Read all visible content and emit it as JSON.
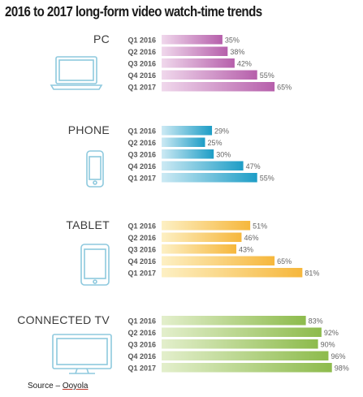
{
  "chart_data": {
    "type": "bar",
    "title": "2016 to 2017 long-form video watch-time trends",
    "categories": [
      "Q1 2016",
      "Q2 2016",
      "Q3 2016",
      "Q4 2016",
      "Q1 2017"
    ],
    "value_suffix": "%",
    "orientation": "horizontal",
    "groups": [
      {
        "name": "PC",
        "icon": "laptop-icon",
        "color_light": "#f0d8ec",
        "color_dark": "#b65fab",
        "values": [
          35,
          38,
          42,
          55,
          65
        ]
      },
      {
        "name": "PHONE",
        "icon": "phone-icon",
        "color_light": "#cdeaf4",
        "color_dark": "#1d9dc6",
        "values": [
          29,
          25,
          30,
          47,
          55
        ]
      },
      {
        "name": "TABLET",
        "icon": "tablet-icon",
        "color_light": "#fdf0c4",
        "color_dark": "#f6b73c",
        "values": [
          51,
          46,
          43,
          65,
          81
        ]
      },
      {
        "name": "CONNECTED TV",
        "icon": "tv-icon",
        "color_light": "#e3efcc",
        "color_dark": "#8dbb4c",
        "values": [
          83,
          92,
          90,
          96,
          98
        ]
      }
    ],
    "xlim": [
      0,
      100
    ]
  },
  "source": {
    "prefix": "Source – ",
    "name": "Ooyola"
  }
}
